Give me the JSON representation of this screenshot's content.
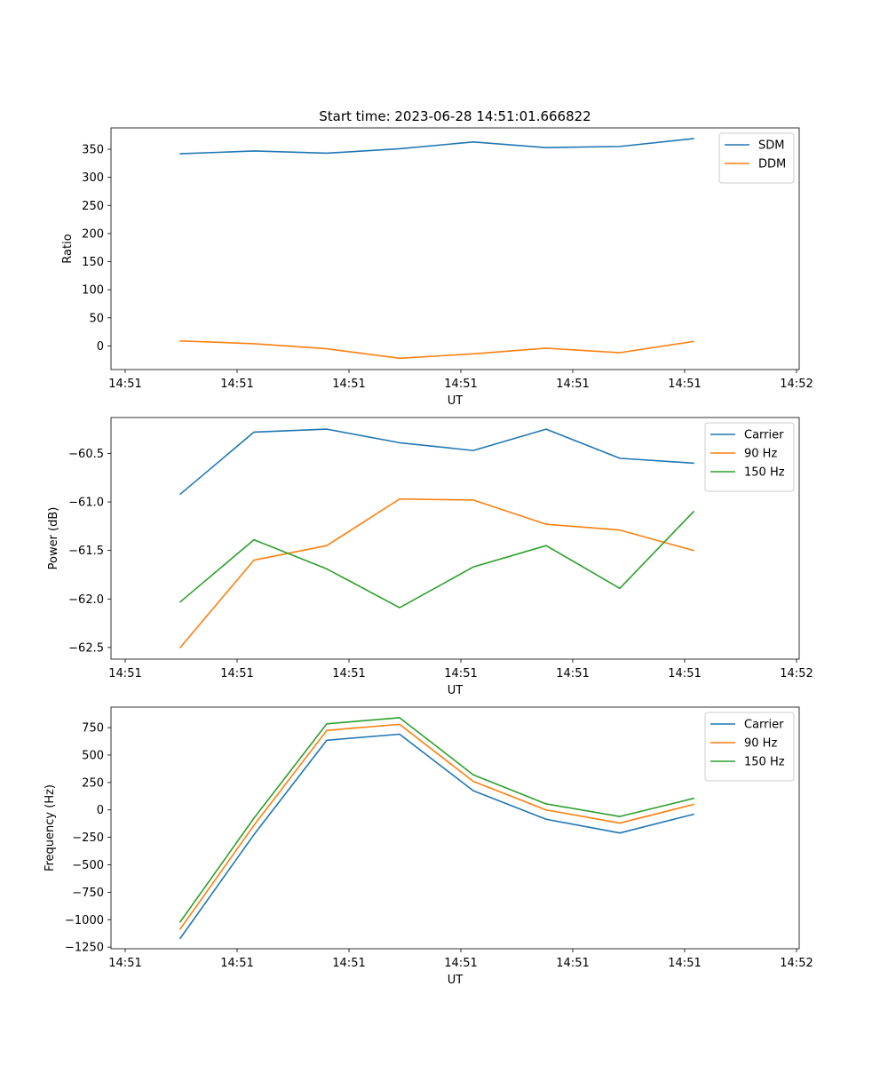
{
  "title": "Start time: 2023-06-28 14:51:01.666822",
  "colors": {
    "blue": "#1f77b4",
    "orange": "#ff7f0e",
    "green": "#2ca02c"
  },
  "chart_data": [
    {
      "type": "line",
      "xlabel": "UT",
      "ylabel": "Ratio",
      "x_tick_labels": [
        "14:51",
        "14:51",
        "14:51",
        "14:51",
        "14:51",
        "14:51",
        "14:51"
      ],
      "x_last_tick_label": "14:52",
      "y_ticks": [
        0,
        50,
        100,
        150,
        200,
        250,
        300,
        350
      ],
      "y_tick_labels": [
        "0",
        "50",
        "100",
        "150",
        "200",
        "250",
        "300",
        "350"
      ],
      "ylim": [
        -42,
        388
      ],
      "legend": "top-right",
      "series": [
        {
          "name": "SDM",
          "color": "#1f77b4",
          "values": [
            342,
            347,
            343,
            351,
            363,
            353,
            355,
            369
          ]
        },
        {
          "name": "DDM",
          "color": "#ff7f0e",
          "values": [
            9,
            4,
            -5,
            -22,
            -14,
            -4,
            -12,
            8
          ]
        }
      ]
    },
    {
      "type": "line",
      "xlabel": "UT",
      "ylabel": "Power (dB)",
      "x_tick_labels": [
        "14:51",
        "14:51",
        "14:51",
        "14:51",
        "14:51",
        "14:51",
        "14:51"
      ],
      "x_last_tick_label": "14:52",
      "y_ticks": [
        -62.5,
        -62.0,
        -61.5,
        -61.0,
        -60.5
      ],
      "y_tick_labels": [
        "−62.5",
        "−62.0",
        "−61.5",
        "−61.0",
        "−60.5"
      ],
      "ylim": [
        -62.62,
        -60.13
      ],
      "legend": "top-right",
      "series": [
        {
          "name": "Carrier",
          "color": "#1f77b4",
          "values": [
            -60.92,
            -60.28,
            -60.25,
            -60.39,
            -60.47,
            -60.25,
            -60.55,
            -60.6
          ]
        },
        {
          "name": "90 Hz",
          "color": "#ff7f0e",
          "values": [
            -62.5,
            -61.6,
            -61.45,
            -60.97,
            -60.98,
            -61.23,
            -61.29,
            -61.5
          ]
        },
        {
          "name": "150 Hz",
          "color": "#2ca02c",
          "values": [
            -62.03,
            -61.39,
            -61.69,
            -62.09,
            -61.67,
            -61.45,
            -61.89,
            -61.1
          ]
        }
      ]
    },
    {
      "type": "line",
      "xlabel": "UT",
      "ylabel": "Frequency (Hz)",
      "x_tick_labels": [
        "14:51",
        "14:51",
        "14:51",
        "14:51",
        "14:51",
        "14:51",
        "14:51"
      ],
      "x_last_tick_label": "14:52",
      "y_ticks": [
        -1250,
        -1000,
        -750,
        -500,
        -250,
        0,
        250,
        500,
        750
      ],
      "y_tick_labels": [
        "−1250",
        "−1000",
        "−750",
        "−500",
        "−250",
        "0",
        "250",
        "500",
        "750"
      ],
      "ylim": [
        -1265,
        937
      ],
      "legend": "top-right",
      "series": [
        {
          "name": "Carrier",
          "color": "#1f77b4",
          "values": [
            -1170,
            -225,
            635,
            690,
            175,
            -85,
            -210,
            -40
          ]
        },
        {
          "name": "90 Hz",
          "color": "#ff7f0e",
          "values": [
            -1085,
            -140,
            725,
            780,
            260,
            0,
            -120,
            50
          ]
        },
        {
          "name": "150 Hz",
          "color": "#2ca02c",
          "values": [
            -1020,
            -75,
            785,
            840,
            320,
            55,
            -60,
            105
          ]
        }
      ]
    }
  ]
}
